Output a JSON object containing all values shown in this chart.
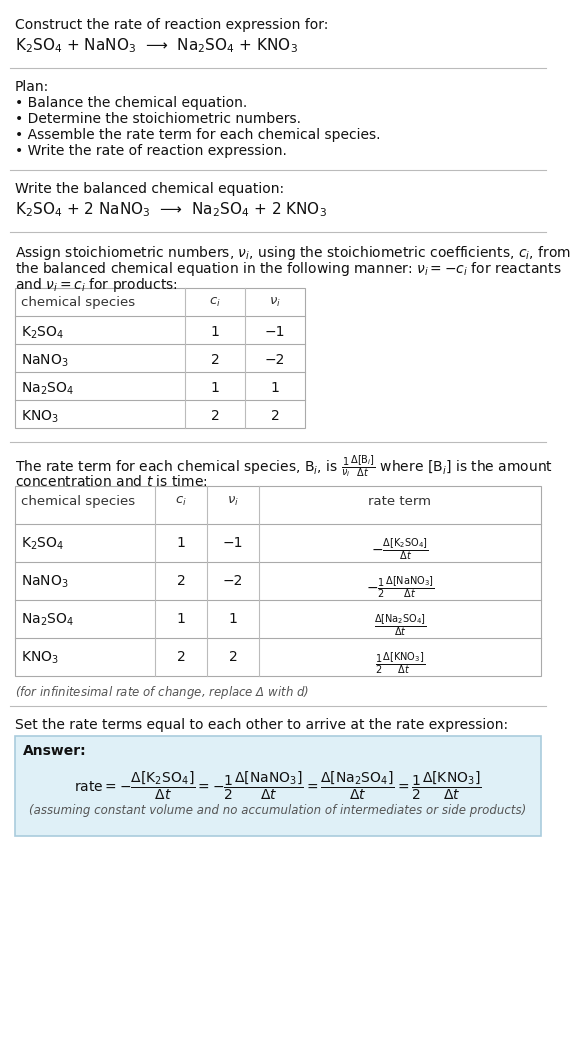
{
  "bg_color": "#ffffff",
  "title_text": "Construct the rate of reaction expression for:",
  "reaction_unbalanced": "K$_2$SO$_4$ + NaNO$_3$  ⟶  Na$_2$SO$_4$ + KNO$_3$",
  "plan_header": "Plan:",
  "plan_items": [
    "• Balance the chemical equation.",
    "• Determine the stoichiometric numbers.",
    "• Assemble the rate term for each chemical species.",
    "• Write the rate of reaction expression."
  ],
  "balanced_header": "Write the balanced chemical equation:",
  "reaction_balanced": "K$_2$SO$_4$ + 2 NaNO$_3$  ⟶  Na$_2$SO$_4$ + 2 KNO$_3$",
  "stoich_line1": "Assign stoichiometric numbers, $\\nu_i$, using the stoichiometric coefficients, $c_i$, from",
  "stoich_line2": "the balanced chemical equation in the following manner: $\\nu_i = -c_i$ for reactants",
  "stoich_line3": "and $\\nu_i = c_i$ for products:",
  "table1_headers": [
    "chemical species",
    "$c_i$",
    "$\\nu_i$"
  ],
  "table1_rows": [
    [
      "K$_2$SO$_4$",
      "1",
      "−1"
    ],
    [
      "NaNO$_3$",
      "2",
      "−2"
    ],
    [
      "Na$_2$SO$_4$",
      "1",
      "1"
    ],
    [
      "KNO$_3$",
      "2",
      "2"
    ]
  ],
  "rate_line1": "The rate term for each chemical species, B$_i$, is $\\frac{1}{\\nu_i}\\frac{\\Delta[\\mathrm{B}_i]}{\\Delta t}$ where [B$_i$] is the amount",
  "rate_line2": "concentration and $t$ is time:",
  "table2_headers": [
    "chemical species",
    "$c_i$",
    "$\\nu_i$",
    "rate term"
  ],
  "table2_rows": [
    [
      "K$_2$SO$_4$",
      "1",
      "−1",
      "$-\\frac{\\Delta[\\mathrm{K_2SO_4}]}{\\Delta t}$"
    ],
    [
      "NaNO$_3$",
      "2",
      "−2",
      "$-\\frac{1}{2}\\frac{\\Delta[\\mathrm{NaNO_3}]}{\\Delta t}$"
    ],
    [
      "Na$_2$SO$_4$",
      "1",
      "1",
      "$\\frac{\\Delta[\\mathrm{Na_2SO_4}]}{\\Delta t}$"
    ],
    [
      "KNO$_3$",
      "2",
      "2",
      "$\\frac{1}{2}\\frac{\\Delta[\\mathrm{KNO_3}]}{\\Delta t}$"
    ]
  ],
  "infinitesimal_note": "(for infinitesimal rate of change, replace Δ with $d$)",
  "set_rate_text": "Set the rate terms equal to each other to arrive at the rate expression:",
  "answer_box_color": "#dff0f7",
  "answer_box_border": "#aaccdd",
  "answer_label": "Answer:",
  "rate_expr_parts": [
    "$\\mathrm{rate} = -\\dfrac{\\Delta[\\mathrm{K_2SO_4}]}{\\Delta t} = -\\dfrac{1}{2}\\dfrac{\\Delta[\\mathrm{NaNO_3}]}{\\Delta t} = \\dfrac{\\Delta[\\mathrm{Na_2SO_4}]}{\\Delta t} = \\dfrac{1}{2}\\dfrac{\\Delta[\\mathrm{KNO_3}]}{\\Delta t}$"
  ],
  "assumption_note": "(assuming constant volume and no accumulation of intermediates or side products)"
}
